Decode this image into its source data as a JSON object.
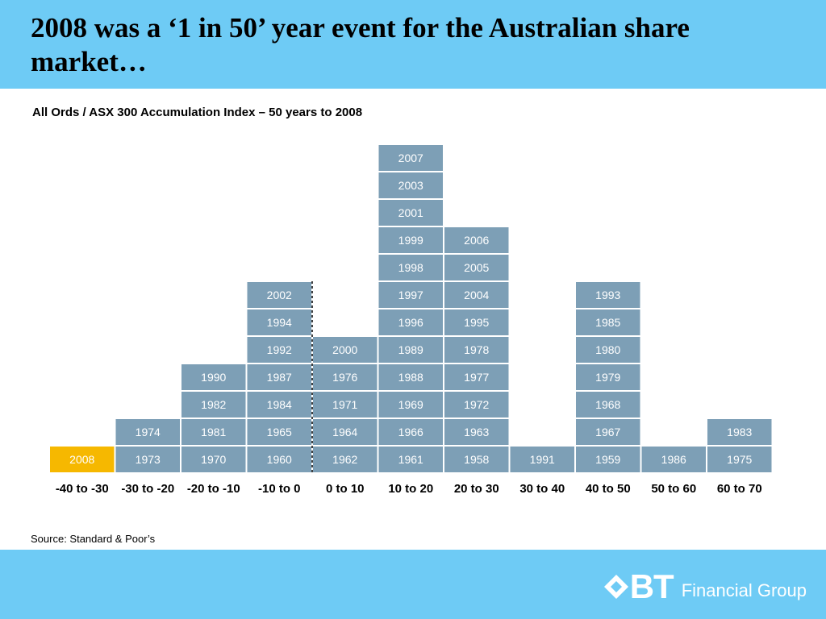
{
  "title": "2008 was a ‘1 in 50’ year event for the Australian share market…",
  "source": "Source: Standard & Poor’s",
  "logo": {
    "mark": "BT",
    "text": "Financial Group"
  },
  "colors": {
    "header": "#6ecbf5",
    "cell": "#7d9fb6",
    "highlight": "#f6b800"
  },
  "chart_data": {
    "type": "table",
    "title": "All Ords / ASX 300 Accumulation Index – 50 years to 2008",
    "categories": [
      "-40 to -30",
      "-30 to -20",
      "-20 to -10",
      "-10 to 0",
      "0 to 10",
      "10 to 20",
      "20 to 30",
      "30 to 40",
      "40 to 50",
      "50 to 60",
      "60 to 70"
    ],
    "years": [
      [
        "2008"
      ],
      [
        "1973",
        "1974"
      ],
      [
        "1970",
        "1981",
        "1982",
        "1990"
      ],
      [
        "1960",
        "1965",
        "1984",
        "1987",
        "1992",
        "1994",
        "2002"
      ],
      [
        "1962",
        "1964",
        "1971",
        "1976",
        "2000"
      ],
      [
        "1961",
        "1966",
        "1969",
        "1988",
        "1989",
        "1996",
        "1997",
        "1998",
        "1999",
        "2001",
        "2003",
        "2007"
      ],
      [
        "1958",
        "1963",
        "1972",
        "1977",
        "1978",
        "1995",
        "2004",
        "2005",
        "2006"
      ],
      [
        "1991"
      ],
      [
        "1959",
        "1967",
        "1968",
        "1979",
        "1980",
        "1985",
        "1993"
      ],
      [
        "1986"
      ],
      [
        "1975",
        "1983"
      ]
    ],
    "highlight": "2008"
  }
}
